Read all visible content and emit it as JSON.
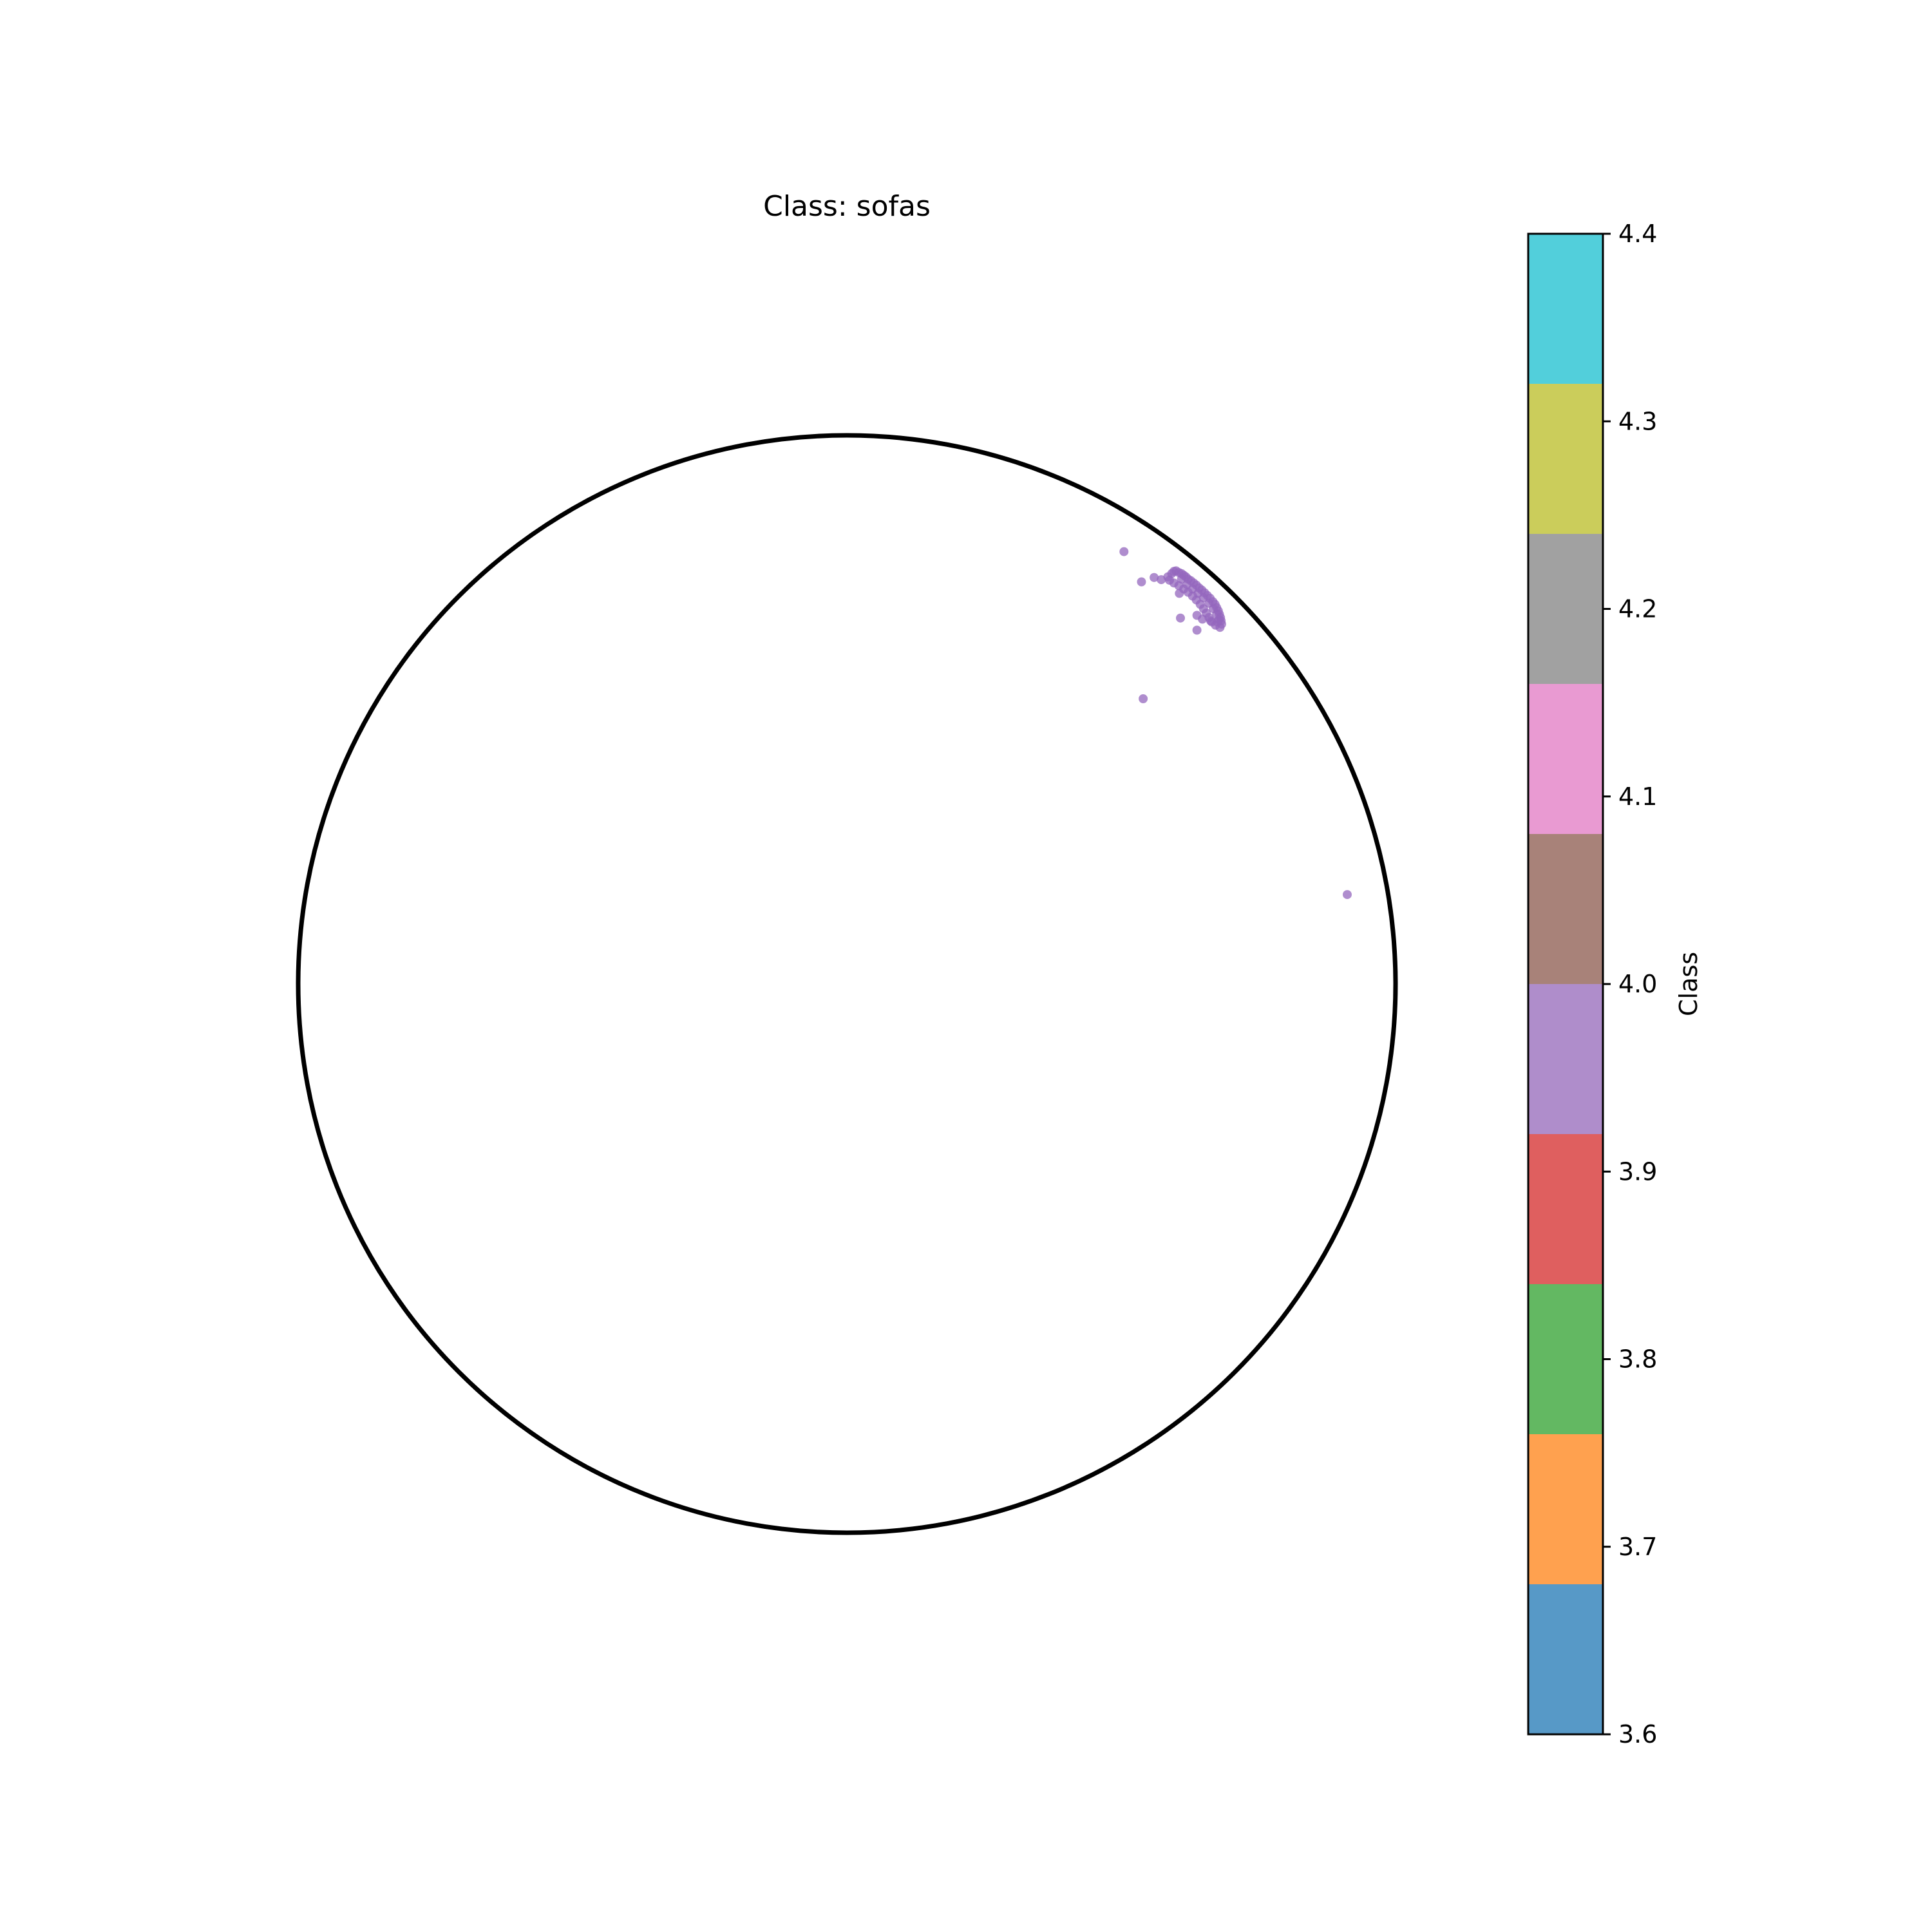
{
  "chart_data": {
    "type": "scatter",
    "title": "Class: sofas",
    "xlabel": "",
    "ylabel": "",
    "xlim": [
      -1,
      1
    ],
    "ylim": [
      -1,
      1
    ],
    "boundary": "unit-circle",
    "grid": false,
    "series": [
      {
        "class_value": 4.0,
        "color": "#9467bd",
        "points": [
          [
            0.505,
            0.788
          ],
          [
            0.537,
            0.733
          ],
          [
            0.56,
            0.741
          ],
          [
            0.573,
            0.737
          ],
          [
            0.585,
            0.742
          ],
          [
            0.592,
            0.748
          ],
          [
            0.596,
            0.752
          ],
          [
            0.6,
            0.753
          ],
          [
            0.605,
            0.75
          ],
          [
            0.61,
            0.748
          ],
          [
            0.614,
            0.745
          ],
          [
            0.618,
            0.742
          ],
          [
            0.622,
            0.738
          ],
          [
            0.627,
            0.735
          ],
          [
            0.632,
            0.731
          ],
          [
            0.637,
            0.727
          ],
          [
            0.642,
            0.722
          ],
          [
            0.647,
            0.718
          ],
          [
            0.652,
            0.713
          ],
          [
            0.657,
            0.708
          ],
          [
            0.662,
            0.703
          ],
          [
            0.667,
            0.697
          ],
          [
            0.671,
            0.692
          ],
          [
            0.674,
            0.686
          ],
          [
            0.677,
            0.68
          ],
          [
            0.679,
            0.674
          ],
          [
            0.681,
            0.668
          ],
          [
            0.682,
            0.662
          ],
          [
            0.683,
            0.656
          ],
          [
            0.68,
            0.65
          ],
          [
            0.672,
            0.654
          ],
          [
            0.665,
            0.66
          ],
          [
            0.66,
            0.668
          ],
          [
            0.655,
            0.676
          ],
          [
            0.65,
            0.684
          ],
          [
            0.644,
            0.692
          ],
          [
            0.637,
            0.7
          ],
          [
            0.63,
            0.707
          ],
          [
            0.622,
            0.714
          ],
          [
            0.614,
            0.72
          ],
          [
            0.605,
            0.726
          ],
          [
            0.596,
            0.731
          ],
          [
            0.588,
            0.736
          ],
          [
            0.61,
            0.738
          ],
          [
            0.62,
            0.728
          ],
          [
            0.63,
            0.72
          ],
          [
            0.64,
            0.712
          ],
          [
            0.65,
            0.704
          ],
          [
            0.66,
            0.694
          ],
          [
            0.668,
            0.684
          ],
          [
            0.674,
            0.674
          ],
          [
            0.678,
            0.664
          ],
          [
            0.606,
            0.712
          ],
          [
            0.638,
            0.672
          ],
          [
            0.648,
            0.665
          ],
          [
            0.663,
            0.662
          ],
          [
            0.675,
            0.66
          ],
          [
            0.608,
            0.667
          ],
          [
            0.638,
            0.645
          ],
          [
            0.54,
            0.52
          ],
          [
            0.912,
            0.163
          ]
        ]
      }
    ],
    "colorbar": {
      "label": "Class",
      "range": [
        3.6,
        4.4
      ],
      "ticks": [
        "3.6",
        "3.7",
        "3.8",
        "3.9",
        "4.0",
        "4.1",
        "4.2",
        "4.3",
        "4.4"
      ],
      "bands": [
        {
          "from": 3.6,
          "to": 3.68,
          "color": "#5799c7"
        },
        {
          "from": 3.68,
          "to": 3.76,
          "color": "#ffa14f"
        },
        {
          "from": 3.76,
          "to": 3.84,
          "color": "#63b862"
        },
        {
          "from": 3.84,
          "to": 3.92,
          "color": "#df5f5f"
        },
        {
          "from": 3.92,
          "to": 4.0,
          "color": "#af8dcb"
        },
        {
          "from": 4.0,
          "to": 4.08,
          "color": "#a88279"
        },
        {
          "from": 4.08,
          "to": 4.16,
          "color": "#e99ad2"
        },
        {
          "from": 4.16,
          "to": 4.24,
          "color": "#a1a1a1"
        },
        {
          "from": 4.24,
          "to": 4.32,
          "color": "#cbcd5b"
        },
        {
          "from": 4.32,
          "to": 4.4,
          "color": "#52cfdb"
        }
      ]
    }
  }
}
